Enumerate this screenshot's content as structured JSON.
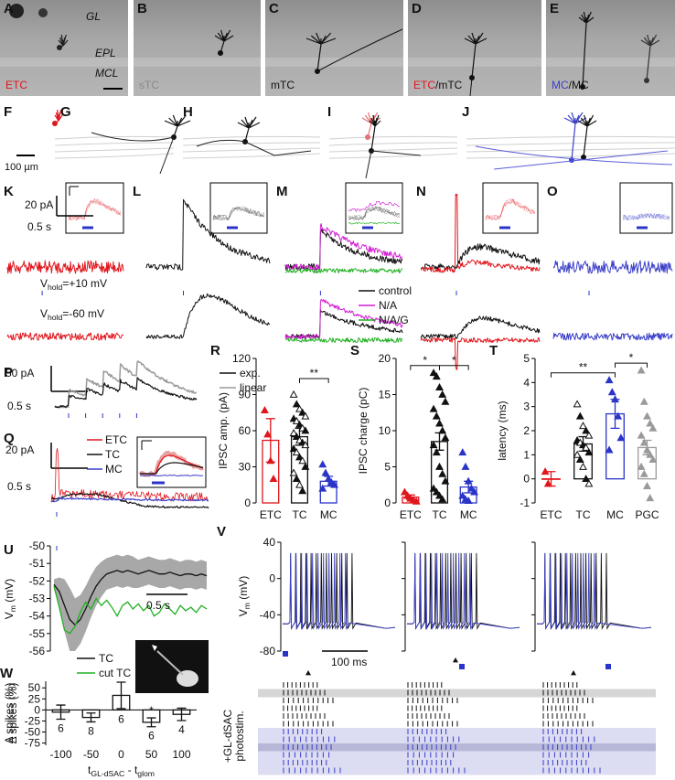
{
  "figure": {
    "images": [
      {
        "letter": "A",
        "layers": [
          "GL",
          "EPL",
          "MCL"
        ],
        "caption": [
          {
            "text": "ETC",
            "color": "#e0161d"
          }
        ]
      },
      {
        "letter": "B",
        "caption": [
          {
            "text": "sTC",
            "color": "#8a8a8a"
          }
        ]
      },
      {
        "letter": "C",
        "caption": [
          {
            "text": "mTC",
            "color": "#111111"
          }
        ]
      },
      {
        "letter": "D",
        "caption": [
          {
            "text": "ETC",
            "color": "#e0161d"
          },
          {
            "text": "/mTC",
            "color": "#111111"
          }
        ]
      },
      {
        "letter": "E",
        "caption": [
          {
            "text": "MC",
            "color": "#3a3fc8"
          },
          {
            "text": "/MC",
            "color": "#111111"
          }
        ]
      }
    ],
    "morphology": {
      "letters": [
        "F",
        "G",
        "H",
        "I",
        "J"
      ],
      "scale": "100 µm"
    },
    "ipsc": {
      "letters": [
        "K",
        "L",
        "M",
        "N",
        "O"
      ],
      "scale_y": "20 pA",
      "scale_x": "0.5 s",
      "vhold": [
        [
          "V",
          "hold",
          "=+10 mV"
        ],
        [
          "V",
          "hold",
          "=-60 mV"
        ]
      ],
      "legend": [
        {
          "name": "control",
          "color": "#111111"
        },
        {
          "name": "N/A",
          "color": "#d21fd2"
        },
        {
          "name": "N/A/G",
          "color": "#22b022"
        }
      ]
    },
    "P": {
      "letter": "P",
      "scale_y": "50 pA",
      "scale_x": "0.5 s",
      "legend": [
        {
          "name": "exp.",
          "color": "#111111"
        },
        {
          "name": "linear",
          "color": "#9a9a9a"
        }
      ]
    },
    "Q": {
      "letter": "Q",
      "scale_y": "20 pA",
      "scale_x": "0.5 s",
      "legend": [
        {
          "name": "ETC",
          "color": "#e0161d"
        },
        {
          "name": "TC",
          "color": "#111111"
        },
        {
          "name": "MC",
          "color": "#3a3fc8"
        }
      ]
    }
  },
  "chart_data": [
    {
      "type": "bar",
      "panel": "R",
      "ylabel": "IPSC amp. (pA)",
      "categories": [
        "ETC",
        "TC",
        "MC"
      ],
      "colors": [
        "#e0161d",
        "#111111",
        "#2b34c8"
      ],
      "point_fill": [
        true,
        false,
        true
      ],
      "values": [
        52,
        55,
        18
      ],
      "errors": [
        18,
        7,
        4
      ],
      "points": [
        [
          77,
          57,
          35,
          20
        ],
        [
          90,
          82,
          78,
          75,
          72,
          70,
          68,
          65,
          62,
          60,
          58,
          55,
          52,
          50,
          48,
          45,
          42,
          38,
          35,
          30,
          25,
          20,
          15,
          10
        ],
        [
          32,
          25,
          20,
          17,
          15,
          12
        ]
      ],
      "ylim": [
        0,
        120
      ],
      "yticks": [
        0,
        30,
        60,
        90,
        120
      ],
      "significance": [
        {
          "between": [
            "TC",
            "MC"
          ],
          "label": "**"
        }
      ]
    },
    {
      "type": "bar",
      "panel": "S",
      "ylabel": "IPSC charge (pC)",
      "categories": [
        "ETC",
        "TC",
        "MC"
      ],
      "colors": [
        "#e0161d",
        "#111111",
        "#2b34c8"
      ],
      "point_fill": [
        true,
        true,
        true
      ],
      "values": [
        0.8,
        8.5,
        2.2
      ],
      "errors": [
        0.3,
        1.2,
        0.8
      ],
      "points": [
        [
          1.5,
          1.0,
          0.6,
          0.4,
          0.2
        ],
        [
          18,
          17.5,
          16,
          15,
          14,
          13,
          12,
          11,
          10,
          9,
          8,
          7,
          5,
          4,
          3,
          2,
          1.5,
          1,
          0.5
        ],
        [
          7,
          5,
          3,
          2,
          1.5,
          1,
          0.5,
          0.3
        ]
      ],
      "ylim": [
        0,
        20
      ],
      "yticks": [
        0,
        5,
        10,
        15,
        20
      ],
      "significance": [
        {
          "between": [
            "ETC",
            "TC"
          ],
          "label": "*"
        },
        {
          "between": [
            "TC",
            "MC"
          ],
          "label": "*"
        }
      ]
    },
    {
      "type": "bar",
      "panel": "T",
      "ylabel": "latency (ms)",
      "categories": [
        "ETC",
        "TC",
        "MC",
        "PGC"
      ],
      "colors": [
        "#e0161d",
        "#111111",
        "#2b34c8",
        "#9a9a9a"
      ],
      "point_fill": [
        true,
        false,
        true,
        true
      ],
      "values": [
        0,
        1.45,
        2.7,
        1.3
      ],
      "errors": [
        0.3,
        0.3,
        0.6,
        0.3
      ],
      "points": [
        [
          0.3,
          -0.2
        ],
        [
          3.1,
          2.6,
          2.2,
          2.0,
          1.8,
          1.6,
          1.5,
          1.4,
          1.3,
          1.1,
          1.0,
          0.8,
          0.5,
          0,
          -0.2
        ],
        [
          4.1,
          3.6,
          3.3,
          2.6,
          1.7,
          1.2
        ],
        [
          4.5,
          3.2,
          2.6,
          2.3,
          2.1,
          1.8,
          1.5,
          1.2,
          1.0,
          0.8,
          0.5,
          0.2,
          -0.3,
          -0.8
        ]
      ],
      "ylim": [
        -1,
        5
      ],
      "yticks": [
        -1,
        0,
        1,
        2,
        3,
        4,
        5
      ],
      "significance": [
        {
          "between": [
            "ETC",
            "MC"
          ],
          "label": "**"
        },
        {
          "between": [
            "MC",
            "PGC"
          ],
          "label": "*"
        }
      ]
    },
    {
      "type": "line",
      "panel": "U",
      "ylabel": [
        "V",
        "m",
        " (mV)"
      ],
      "scale_x": "0.5 s",
      "ylim": [
        -56,
        -50
      ],
      "yticks": [
        -56,
        -55,
        -54,
        -53,
        -52,
        -51,
        -50
      ],
      "series": [
        {
          "name": "TC",
          "color": "#111111",
          "values": [
            -52.2,
            -52.6,
            -53.4,
            -54.2,
            -54.5,
            -54.2,
            -53.6,
            -52.9,
            -52.3,
            -51.9,
            -51.6,
            -51.5,
            -51.4,
            -51.5,
            -51.4,
            -51.5,
            -51.6,
            -51.5,
            -51.4,
            -51.5,
            -51.6,
            -51.6,
            -51.5,
            -51.6,
            -51.7,
            -51.6,
            -51.6,
            -51.7,
            -51.6,
            -51.7
          ],
          "errors": [
            0.3,
            0.8,
            1.5,
            1.8,
            1.5,
            1.4,
            1.3,
            1.2,
            1.1,
            1.0,
            0.9,
            0.9,
            0.9,
            0.9,
            0.9,
            0.9,
            0.8,
            0.8,
            0.8,
            0.8,
            0.8,
            0.8,
            0.8,
            0.8,
            0.8,
            0.8,
            0.8,
            0.8,
            0.8,
            0.8
          ]
        },
        {
          "name": "cut TC",
          "color": "#22b022",
          "values": [
            -52.3,
            -53.5,
            -54.8,
            -55,
            -54.6,
            -53.8,
            -53.2,
            -53.6,
            -53.0,
            -53.4,
            -53.1,
            -53.5,
            -54.0,
            -53.4,
            -53.2,
            -53.6,
            -53.3,
            -53.7,
            -53.4,
            -54.0,
            -53.8,
            -53.3,
            -53.6,
            -53.9,
            -53.4,
            -53.7,
            -53.5,
            -53.8,
            -53.4,
            -53.6
          ]
        }
      ]
    },
    {
      "type": "bar",
      "panel": "W",
      "ylabel": "Δ spikes (%)",
      "xlabel": [
        "t",
        "GL-dSAC",
        " - t",
        "glom"
      ],
      "categories": [
        "-100",
        "-50",
        "0",
        "50",
        "100"
      ],
      "values": [
        -5,
        -17,
        33,
        -28,
        -10
      ],
      "errors": [
        16,
        10,
        30,
        10,
        14
      ],
      "n": [
        6,
        8,
        6,
        6,
        4
      ],
      "ylim": [
        -80,
        65
      ],
      "yticks": [
        -75,
        -50,
        -25,
        0,
        25,
        50
      ],
      "significance_at": {
        "category": "50",
        "label": "*"
      }
    },
    {
      "type": "line",
      "panel": "V",
      "ylabel": [
        "V",
        "m",
        " (mV)"
      ],
      "scale_x": "100 ms",
      "ylim": [
        -80,
        40
      ],
      "yticks": [
        -80,
        -40,
        0,
        40
      ],
      "annotation": [
        "+GL-dSAC",
        "photostim."
      ]
    }
  ]
}
